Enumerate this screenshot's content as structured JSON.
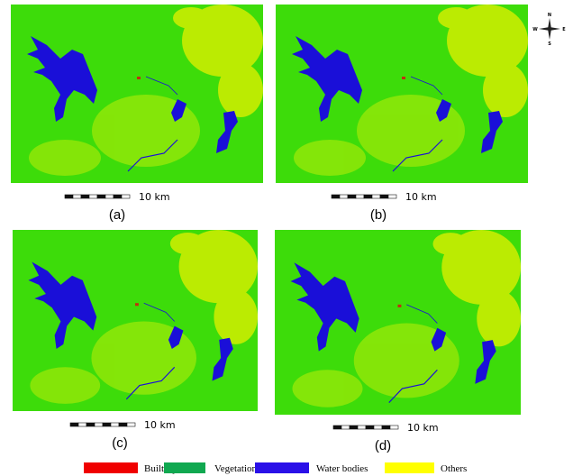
{
  "panels": [
    {
      "label": "(a)",
      "scale": "10 km"
    },
    {
      "label": "(b)",
      "scale": "10 km"
    },
    {
      "label": "(c)",
      "scale": "10 km"
    },
    {
      "label": "(d)",
      "scale": "10 km"
    }
  ],
  "compass": {
    "north": "N",
    "south": "S",
    "east": "E",
    "west": "W"
  },
  "legend": [
    {
      "label": "Built-up",
      "color": "#f00000"
    },
    {
      "label": "Vegetation",
      "color": "#10a850"
    },
    {
      "label": "Water bodies",
      "color": "#2a10e8"
    },
    {
      "label": "Others",
      "color": "#ffff00"
    }
  ]
}
